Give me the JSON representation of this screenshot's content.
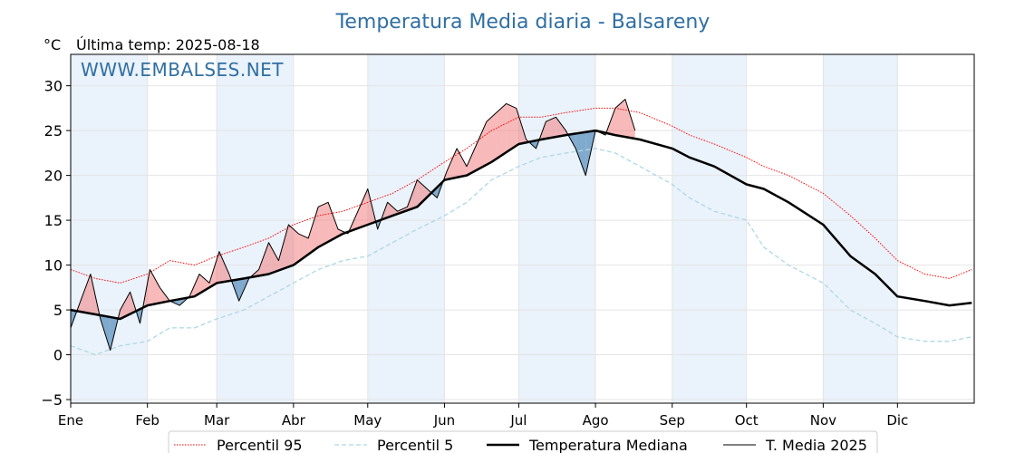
{
  "chart_data": {
    "type": "line",
    "title": "Temperatura Media diaria - Balsareny",
    "unit": "°C",
    "subtitle": "Última temp: 2025-08-18",
    "watermark": "WWW.EMBALSES.NET",
    "ylim": [
      -5.4,
      33.5
    ],
    "yticks": [
      -5,
      0,
      5,
      10,
      15,
      20,
      25,
      30
    ],
    "ytick_labels": [
      "−5",
      "0",
      "5",
      "10",
      "15",
      "20",
      "25",
      "30"
    ],
    "xlim": [
      0,
      365
    ],
    "month_starts": [
      0,
      31,
      59,
      90,
      120,
      151,
      181,
      212,
      243,
      273,
      304,
      334
    ],
    "month_labels": [
      "Ene",
      "Feb",
      "Mar",
      "Abr",
      "May",
      "Jun",
      "Jul",
      "Ago",
      "Sep",
      "Oct",
      "Nov",
      "Dic"
    ],
    "grid": true,
    "legend_position": "bottom",
    "colors": {
      "p95": "#ff0000",
      "p5": "#add8e6",
      "median": "#000000",
      "current": "#000000",
      "above_fill": "#f08080",
      "below_fill": "#4682b4",
      "month_band": "#eaf2fb",
      "title": "#2f6fa3"
    },
    "series": [
      {
        "name": "Percentil 95",
        "style": "dotted-red",
        "x": [
          0,
          10,
          20,
          31,
          40,
          50,
          59,
          70,
          80,
          90,
          100,
          110,
          120,
          130,
          140,
          151,
          160,
          170,
          181,
          190,
          200,
          212,
          220,
          230,
          243,
          250,
          260,
          273,
          280,
          290,
          304,
          315,
          325,
          334,
          345,
          355,
          364
        ],
        "y": [
          9.5,
          8.5,
          8.0,
          9.0,
          10.5,
          10.0,
          11.0,
          12.0,
          13.0,
          14.5,
          15.5,
          16.0,
          17.0,
          18.0,
          19.5,
          21.5,
          23.0,
          25.0,
          26.5,
          26.5,
          27.0,
          27.5,
          27.5,
          27.0,
          25.5,
          24.5,
          23.5,
          22.0,
          21.0,
          20.0,
          18.0,
          15.5,
          13.0,
          10.5,
          9.0,
          8.5,
          9.5
        ]
      },
      {
        "name": "Percentil 5",
        "style": "dashed-lightblue",
        "x": [
          0,
          10,
          20,
          31,
          40,
          50,
          59,
          70,
          80,
          90,
          100,
          110,
          120,
          130,
          140,
          151,
          160,
          170,
          181,
          190,
          200,
          212,
          220,
          230,
          243,
          250,
          260,
          273,
          280,
          290,
          304,
          315,
          325,
          334,
          345,
          355,
          364
        ],
        "y": [
          1.0,
          0.0,
          1.0,
          1.5,
          3.0,
          3.0,
          4.0,
          5.0,
          6.5,
          8.0,
          9.5,
          10.5,
          11.0,
          12.5,
          14.0,
          15.5,
          17.0,
          19.5,
          21.0,
          22.0,
          22.5,
          23.0,
          22.5,
          21.0,
          19.0,
          17.5,
          16.0,
          15.0,
          12.0,
          10.0,
          8.0,
          5.0,
          3.5,
          2.0,
          1.5,
          1.5,
          2.0
        ]
      },
      {
        "name": "Temperatura Mediana",
        "style": "thick-black",
        "x": [
          0,
          10,
          20,
          31,
          40,
          50,
          59,
          70,
          80,
          90,
          100,
          110,
          120,
          130,
          140,
          151,
          160,
          170,
          181,
          190,
          200,
          212,
          220,
          230,
          243,
          250,
          260,
          273,
          280,
          290,
          304,
          315,
          325,
          334,
          345,
          355,
          364
        ],
        "y": [
          5.0,
          4.5,
          4.0,
          5.5,
          6.0,
          6.5,
          8.0,
          8.5,
          9.0,
          10.0,
          12.0,
          13.5,
          14.5,
          15.5,
          16.5,
          19.5,
          20.0,
          21.5,
          23.5,
          24.0,
          24.5,
          25.0,
          24.5,
          24.0,
          23.0,
          22.0,
          21.0,
          19.0,
          18.5,
          17.0,
          14.5,
          11.0,
          9.0,
          6.5,
          6.0,
          5.5,
          5.8
        ]
      },
      {
        "name": "T. Media 2025",
        "style": "thin-black",
        "x": [
          0,
          4,
          8,
          12,
          16,
          20,
          24,
          28,
          32,
          36,
          40,
          44,
          48,
          52,
          56,
          60,
          64,
          68,
          72,
          76,
          80,
          84,
          88,
          92,
          96,
          100,
          104,
          108,
          112,
          116,
          120,
          124,
          128,
          132,
          136,
          140,
          144,
          148,
          152,
          156,
          160,
          164,
          168,
          172,
          176,
          180,
          184,
          188,
          192,
          196,
          200,
          204,
          208,
          212,
          216,
          220,
          224,
          228
        ],
        "y": [
          3.0,
          6.0,
          9.0,
          4.0,
          0.5,
          5.0,
          7.0,
          3.5,
          9.5,
          7.5,
          6.0,
          5.5,
          6.5,
          9.0,
          8.0,
          11.5,
          9.0,
          6.0,
          8.5,
          9.5,
          12.5,
          10.5,
          14.5,
          13.5,
          13.0,
          16.5,
          17.0,
          14.0,
          13.5,
          16.0,
          18.5,
          14.0,
          17.0,
          16.0,
          16.5,
          19.5,
          18.5,
          17.5,
          20.5,
          23.0,
          21.0,
          23.5,
          26.0,
          27.0,
          28.0,
          27.5,
          24.0,
          23.0,
          26.0,
          26.5,
          25.0,
          23.0,
          20.0,
          25.0,
          24.5,
          27.5,
          28.5,
          25.0
        ]
      }
    ],
    "legend": [
      {
        "label": "Percentil 95",
        "style": "dotted-red"
      },
      {
        "label": "Percentil 5",
        "style": "dashed-lightblue"
      },
      {
        "label": "Temperatura Mediana",
        "style": "thick-black"
      },
      {
        "label": "T. Media 2025",
        "style": "thin-black"
      }
    ]
  }
}
